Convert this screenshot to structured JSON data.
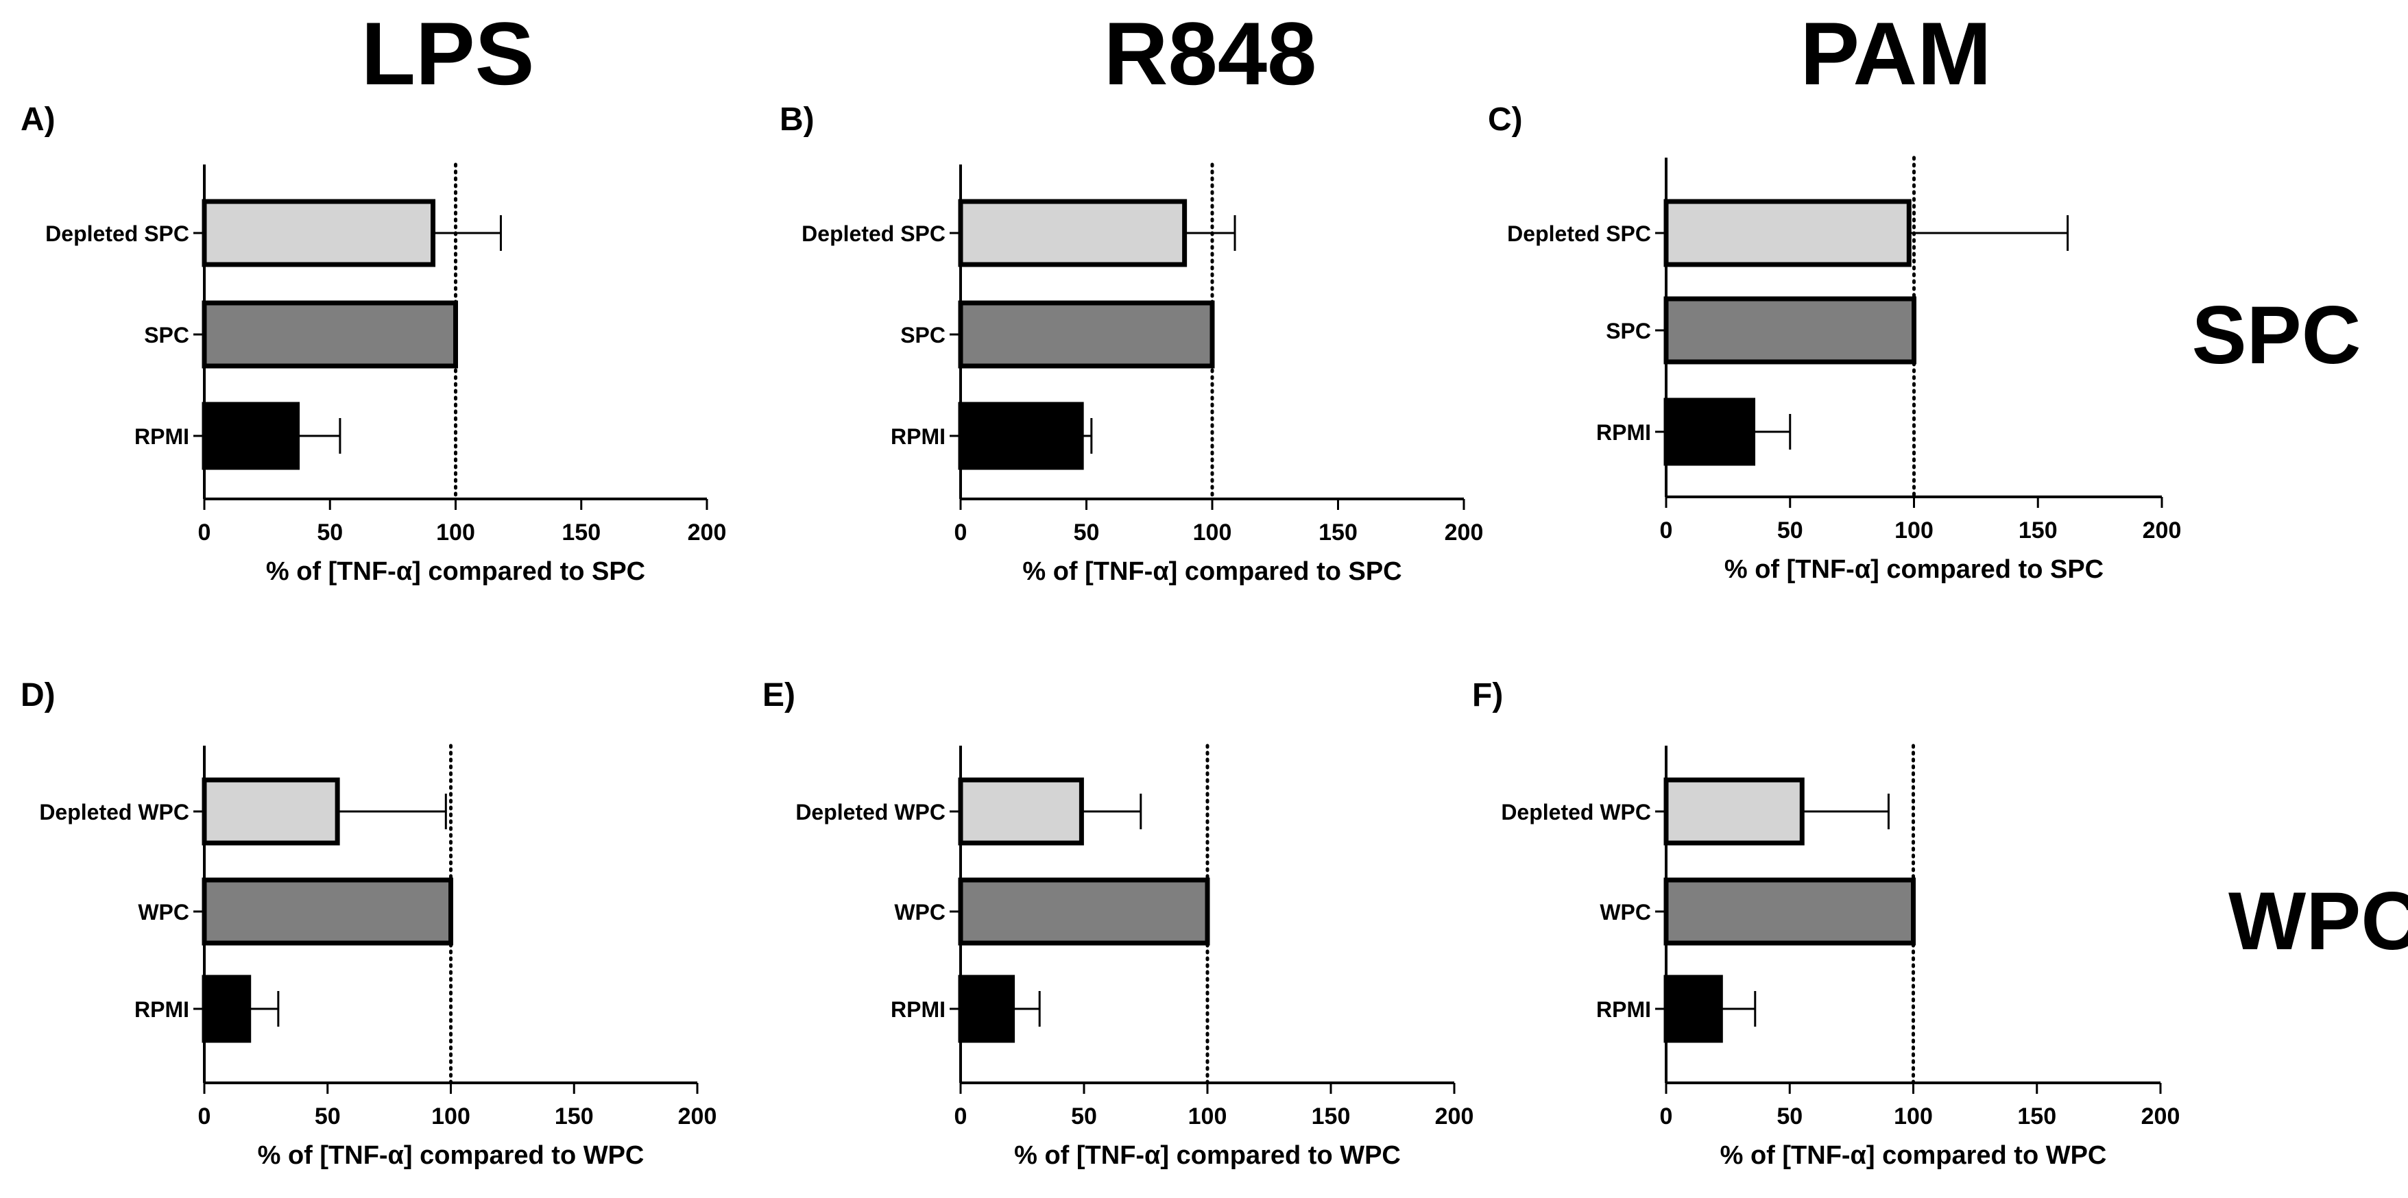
{
  "figure": {
    "column_titles": [
      "LPS",
      "R848",
      "PAM"
    ],
    "row_titles": [
      "SPC",
      "WPC"
    ]
  },
  "chart_data": [
    {
      "type": "bar",
      "orientation": "horizontal",
      "panel_label": "A)",
      "categories": [
        "Depleted SPC",
        "SPC",
        "RPMI"
      ],
      "values": [
        91,
        100,
        37
      ],
      "error_plus": [
        27,
        0,
        17
      ],
      "xlim": [
        0,
        200
      ],
      "xticks": [
        0,
        50,
        100,
        150,
        200
      ],
      "xlabel": "% of [TNF-α] compared to SPC",
      "reference_line": 100
    },
    {
      "type": "bar",
      "orientation": "horizontal",
      "panel_label": "B)",
      "categories": [
        "Depleted SPC",
        "SPC",
        "RPMI"
      ],
      "values": [
        89,
        100,
        48
      ],
      "error_plus": [
        20,
        0,
        4
      ],
      "xlim": [
        0,
        200
      ],
      "xticks": [
        0,
        50,
        100,
        150,
        200
      ],
      "xlabel": "% of [TNF-α] compared to SPC",
      "reference_line": 100
    },
    {
      "type": "bar",
      "orientation": "horizontal",
      "panel_label": "C)",
      "categories": [
        "Depleted SPC",
        "SPC",
        "RPMI"
      ],
      "values": [
        98,
        100,
        35
      ],
      "error_plus": [
        64,
        0,
        15
      ],
      "xlim": [
        0,
        200
      ],
      "xticks": [
        0,
        50,
        100,
        150,
        200
      ],
      "xlabel": "% of [TNF-α] compared to SPC",
      "reference_line": 100
    },
    {
      "type": "bar",
      "orientation": "horizontal",
      "panel_label": "D)",
      "categories": [
        "Depleted WPC",
        "WPC",
        "RPMI"
      ],
      "values": [
        54,
        100,
        18
      ],
      "error_plus": [
        44,
        0,
        12
      ],
      "xlim": [
        0,
        200
      ],
      "xticks": [
        0,
        50,
        100,
        150,
        200
      ],
      "xlabel": "% of [TNF-α] compared to WPC",
      "reference_line": 100
    },
    {
      "type": "bar",
      "orientation": "horizontal",
      "panel_label": "E)",
      "categories": [
        "Depleted WPC",
        "WPC",
        "RPMI"
      ],
      "values": [
        49,
        100,
        21
      ],
      "error_plus": [
        24,
        0,
        11
      ],
      "xlim": [
        0,
        200
      ],
      "xticks": [
        0,
        50,
        100,
        150,
        200
      ],
      "xlabel": "% of [TNF-α] compared to WPC",
      "reference_line": 100
    },
    {
      "type": "bar",
      "orientation": "horizontal",
      "panel_label": "F)",
      "categories": [
        "Depleted WPC",
        "WPC",
        "RPMI"
      ],
      "values": [
        55,
        100,
        22
      ],
      "error_plus": [
        35,
        0,
        14
      ],
      "xlim": [
        0,
        200
      ],
      "xticks": [
        0,
        50,
        100,
        150,
        200
      ],
      "xlabel": "% of [TNF-α] compared to WPC",
      "reference_line": 100
    }
  ],
  "colors": {
    "bars": [
      "#d4d4d4",
      "#7f7f7f",
      "#000000"
    ],
    "stroke": "#000000"
  }
}
